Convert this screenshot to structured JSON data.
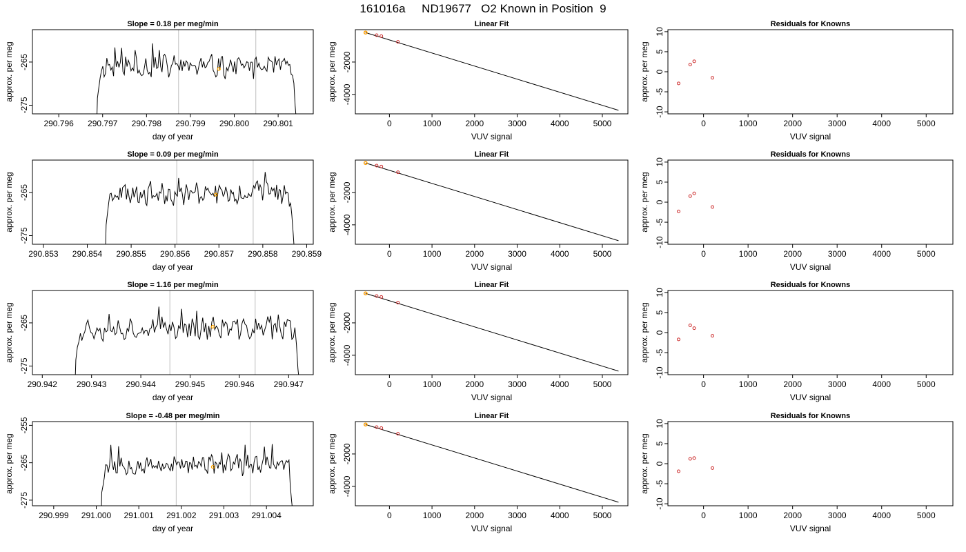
{
  "page": {
    "title": "161016a     ND19677   O2 Known in Position  9"
  },
  "colors": {
    "trace": "#000000",
    "highlight": "#ffa500",
    "point": "#cc2a2a",
    "vline": "#c8c8c8"
  },
  "chart_data": [
    {
      "row": 0,
      "col": 0,
      "type": "line",
      "title": "Slope =  0.18  per meg/min",
      "xlabel": "day of year",
      "ylabel": "approx. per meg",
      "xlim": [
        290.7954,
        290.8018
      ],
      "ylim": [
        -277,
        -257.5
      ],
      "xticks": [
        290.796,
        290.797,
        290.798,
        290.799,
        290.8,
        290.801
      ],
      "xticklabels": [
        "290.796",
        "290.797",
        "290.798",
        "290.799",
        "290.800",
        "290.801"
      ],
      "yticks": [
        -265,
        -275
      ],
      "yticklabels": [
        "-265",
        "-275"
      ],
      "x_start": 290.79685,
      "x_end": 290.80145,
      "baseline": -266.0,
      "seed": 11,
      "vlines": [
        290.79873,
        290.80049
      ],
      "highlight": {
        "x": 290.79965,
        "y": -266.6
      }
    },
    {
      "row": 0,
      "col": 1,
      "type": "scatter",
      "title": "Linear Fit",
      "xlabel": "VUV signal",
      "ylabel": "approx. per meg",
      "xlim": [
        -800,
        5600
      ],
      "ylim": [
        -5200,
        0
      ],
      "xticks": [
        0,
        1000,
        2000,
        3000,
        4000,
        5000
      ],
      "xticklabels": [
        "0",
        "1000",
        "2000",
        "3000",
        "4000",
        "5000"
      ],
      "yticks": [
        -2000,
        -4000
      ],
      "yticklabels": [
        "-2000",
        "-4000"
      ],
      "points": [
        {
          "x": -560,
          "y": -180
        },
        {
          "x": -300,
          "y": -340
        },
        {
          "x": -190,
          "y": -400
        },
        {
          "x": 200,
          "y": -750
        }
      ],
      "highlight": {
        "x": -560,
        "y": -180
      },
      "fit": {
        "x": [
          -560,
          5380
        ],
        "y": [
          -180,
          -4980
        ]
      }
    },
    {
      "row": 0,
      "col": 2,
      "type": "scatter",
      "title": "Residuals for Knowns",
      "xlabel": "VUV signal",
      "ylabel": "approx. per meg",
      "xlim": [
        -800,
        5600
      ],
      "ylim": [
        -10.5,
        10.5
      ],
      "xticks": [
        0,
        1000,
        2000,
        3000,
        4000,
        5000
      ],
      "xticklabels": [
        "0",
        "1000",
        "2000",
        "3000",
        "4000",
        "5000"
      ],
      "yticks": [
        -10,
        -5,
        0,
        5,
        10
      ],
      "yticklabels": [
        "-10",
        "-5",
        "0",
        "5",
        "10"
      ],
      "points": [
        {
          "x": -560,
          "y": -2.9
        },
        {
          "x": -300,
          "y": 1.8
        },
        {
          "x": -210,
          "y": 2.6
        },
        {
          "x": 200,
          "y": -1.5
        }
      ]
    },
    {
      "row": 1,
      "col": 0,
      "type": "line",
      "title": "Slope =  0.09  per meg/min",
      "xlabel": "day of year",
      "ylabel": "approx. per meg",
      "xlim": [
        290.85275,
        290.85915
      ],
      "ylim": [
        -277,
        -257.5
      ],
      "xticks": [
        290.853,
        290.854,
        290.855,
        290.856,
        290.857,
        290.858,
        290.859
      ],
      "xticklabels": [
        "290.853",
        "290.854",
        "290.855",
        "290.856",
        "290.857",
        "290.858",
        "290.859"
      ],
      "yticks": [
        -265,
        -275
      ],
      "yticklabels": [
        "-265",
        "-275"
      ],
      "x_start": 290.8544,
      "x_end": 290.85875,
      "baseline": -265.2,
      "seed": 23,
      "vlines": [
        290.85604,
        290.85778
      ],
      "highlight": {
        "x": 290.85693,
        "y": -265.5
      }
    },
    {
      "row": 1,
      "col": 1,
      "type": "scatter",
      "title": "Linear Fit",
      "xlabel": "VUV signal",
      "ylabel": "approx. per meg",
      "xlim": [
        -800,
        5600
      ],
      "ylim": [
        -5200,
        0
      ],
      "xticks": [
        0,
        1000,
        2000,
        3000,
        4000,
        5000
      ],
      "xticklabels": [
        "0",
        "1000",
        "2000",
        "3000",
        "4000",
        "5000"
      ],
      "yticks": [
        -2000,
        -4000
      ],
      "yticklabels": [
        "-2000",
        "-4000"
      ],
      "points": [
        {
          "x": -560,
          "y": -180
        },
        {
          "x": -300,
          "y": -340
        },
        {
          "x": -190,
          "y": -400
        },
        {
          "x": 200,
          "y": -750
        }
      ],
      "highlight": {
        "x": -560,
        "y": -180
      },
      "fit": {
        "x": [
          -560,
          5380
        ],
        "y": [
          -180,
          -4980
        ]
      }
    },
    {
      "row": 1,
      "col": 2,
      "type": "scatter",
      "title": "Residuals for Knowns",
      "xlabel": "VUV signal",
      "ylabel": "approx. per meg",
      "xlim": [
        -800,
        5600
      ],
      "ylim": [
        -10.5,
        10.5
      ],
      "xticks": [
        0,
        1000,
        2000,
        3000,
        4000,
        5000
      ],
      "xticklabels": [
        "0",
        "1000",
        "2000",
        "3000",
        "4000",
        "5000"
      ],
      "yticks": [
        -10,
        -5,
        0,
        5,
        10
      ],
      "yticklabels": [
        "-10",
        "-5",
        "0",
        "5",
        "10"
      ],
      "points": [
        {
          "x": -560,
          "y": -2.3
        },
        {
          "x": -300,
          "y": 1.5
        },
        {
          "x": -210,
          "y": 2.2
        },
        {
          "x": 200,
          "y": -1.2
        }
      ]
    },
    {
      "row": 2,
      "col": 0,
      "type": "line",
      "title": "Slope =  1.16  per meg/min",
      "xlabel": "day of year",
      "ylabel": "approx. per meg",
      "xlim": [
        290.9418,
        290.9475
      ],
      "ylim": [
        -277,
        -257.5
      ],
      "xticks": [
        290.942,
        290.943,
        290.944,
        290.945,
        290.946,
        290.947
      ],
      "xticklabels": [
        "290.942",
        "290.943",
        "290.944",
        "290.945",
        "290.946",
        "290.947"
      ],
      "yticks": [
        -265,
        -275
      ],
      "yticklabels": [
        "-265",
        "-275"
      ],
      "x_start": 290.94265,
      "x_end": 290.94725,
      "baseline": -266.3,
      "seed": 37,
      "vlines": [
        290.94459,
        290.94632
      ],
      "highlight": {
        "x": 290.94546,
        "y": -265.9
      }
    },
    {
      "row": 2,
      "col": 1,
      "type": "scatter",
      "title": "Linear Fit",
      "xlabel": "VUV signal",
      "ylabel": "approx. per meg",
      "xlim": [
        -800,
        5600
      ],
      "ylim": [
        -5200,
        0
      ],
      "xticks": [
        0,
        1000,
        2000,
        3000,
        4000,
        5000
      ],
      "xticklabels": [
        "0",
        "1000",
        "2000",
        "3000",
        "4000",
        "5000"
      ],
      "yticks": [
        -2000,
        -4000
      ],
      "yticklabels": [
        "-2000",
        "-4000"
      ],
      "points": [
        {
          "x": -560,
          "y": -180
        },
        {
          "x": -300,
          "y": -340
        },
        {
          "x": -190,
          "y": -400
        },
        {
          "x": 200,
          "y": -750
        }
      ],
      "highlight": {
        "x": -560,
        "y": -180
      },
      "fit": {
        "x": [
          -560,
          5380
        ],
        "y": [
          -180,
          -4980
        ]
      }
    },
    {
      "row": 2,
      "col": 2,
      "type": "scatter",
      "title": "Residuals for Knowns",
      "xlabel": "VUV signal",
      "ylabel": "approx. per meg",
      "xlim": [
        -800,
        5600
      ],
      "ylim": [
        -10.5,
        10.5
      ],
      "xticks": [
        0,
        1000,
        2000,
        3000,
        4000,
        5000
      ],
      "xticklabels": [
        "0",
        "1000",
        "2000",
        "3000",
        "4000",
        "5000"
      ],
      "yticks": [
        -10,
        -5,
        0,
        5,
        10
      ],
      "yticklabels": [
        "-10",
        "-5",
        "0",
        "5",
        "10"
      ],
      "points": [
        {
          "x": -560,
          "y": -1.7
        },
        {
          "x": -300,
          "y": 1.8
        },
        {
          "x": -210,
          "y": 1.1
        },
        {
          "x": 200,
          "y": -0.8
        }
      ]
    },
    {
      "row": 3,
      "col": 0,
      "type": "line",
      "title": "Slope =  -0.48  per meg/min",
      "xlabel": "day of year",
      "ylabel": "approx. per meg",
      "xlim": [
        290.9985,
        291.0051
      ],
      "ylim": [
        -276.5,
        -254
      ],
      "xticks": [
        290.999,
        291.0,
        291.001,
        291.002,
        291.003,
        291.004
      ],
      "xticklabels": [
        "290.999",
        "291.000",
        "291.001",
        "291.002",
        "291.003",
        "291.004"
      ],
      "yticks": [
        -255,
        -265,
        -275
      ],
      "yticklabels": [
        "-255",
        "-265",
        "-275"
      ],
      "x_start": 291.0001,
      "x_end": 291.00465,
      "baseline": -265.6,
      "seed": 53,
      "vlines": [
        291.00188,
        291.00362
      ],
      "highlight": {
        "x": 291.00274,
        "y": -266.1
      }
    },
    {
      "row": 3,
      "col": 1,
      "type": "scatter",
      "title": "Linear Fit",
      "xlabel": "VUV signal",
      "ylabel": "approx. per meg",
      "xlim": [
        -800,
        5600
      ],
      "ylim": [
        -5200,
        0
      ],
      "xticks": [
        0,
        1000,
        2000,
        3000,
        4000,
        5000
      ],
      "xticklabels": [
        "0",
        "1000",
        "2000",
        "3000",
        "4000",
        "5000"
      ],
      "yticks": [
        -2000,
        -4000
      ],
      "yticklabels": [
        "-2000",
        "-4000"
      ],
      "points": [
        {
          "x": -560,
          "y": -180
        },
        {
          "x": -300,
          "y": -340
        },
        {
          "x": -190,
          "y": -400
        },
        {
          "x": 200,
          "y": -750
        }
      ],
      "highlight": {
        "x": -560,
        "y": -180
      },
      "fit": {
        "x": [
          -560,
          5380
        ],
        "y": [
          -180,
          -4980
        ]
      }
    },
    {
      "row": 3,
      "col": 2,
      "type": "scatter",
      "title": "Residuals for Knowns",
      "xlabel": "VUV signal",
      "ylabel": "approx. per meg",
      "xlim": [
        -800,
        5600
      ],
      "ylim": [
        -10.5,
        10.5
      ],
      "xticks": [
        0,
        1000,
        2000,
        3000,
        4000,
        5000
      ],
      "xticklabels": [
        "0",
        "1000",
        "2000",
        "3000",
        "4000",
        "5000"
      ],
      "yticks": [
        -10,
        -5,
        0,
        5,
        10
      ],
      "yticklabels": [
        "-10",
        "-5",
        "0",
        "5",
        "10"
      ],
      "points": [
        {
          "x": -560,
          "y": -1.9
        },
        {
          "x": -300,
          "y": 1.2
        },
        {
          "x": -210,
          "y": 1.4
        },
        {
          "x": 200,
          "y": -1.1
        }
      ]
    }
  ]
}
